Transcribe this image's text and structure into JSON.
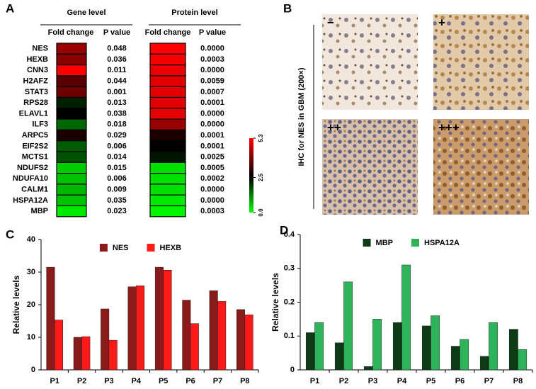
{
  "chart_data": [
    {
      "type": "heatmap",
      "panel": "A",
      "groups": [
        "Gene level",
        "Protein level"
      ],
      "column_labels": [
        "Fold change",
        "P value",
        "Fold change",
        "P value"
      ],
      "rows": [
        "NES",
        "HEXB",
        "CNN3",
        "H2AFZ",
        "STAT3",
        "RPS28",
        "ELAVL1",
        "ILF3",
        "ARPC5",
        "EIF2S2",
        "MCTS1",
        "NDUFS2",
        "NDUFA10",
        "CALM1",
        "HSPA12A",
        "MBP"
      ],
      "row_colors": [
        "#e02020",
        "#e02020",
        "#000000",
        "#000000",
        "#000000",
        "#000000",
        "#000000",
        "#000000",
        "#000000",
        "#000000",
        "#000000",
        "#000000",
        "#000000",
        "#000000",
        "#2a9d55",
        "#2a9d55"
      ],
      "values": [
        [
          4.2,
          4.0,
          5.3,
          3.5,
          3.7,
          2.2,
          2.5,
          1.5,
          2.8,
          1.6,
          1.7,
          0.5,
          0.6,
          0.7,
          0.6,
          0.2
        ],
        [
          5.3,
          5.2,
          5.1,
          5.0,
          5.0,
          5.0,
          5.0,
          4.2,
          2.8,
          2.5,
          2.3,
          0.3,
          0.3,
          0.3,
          0.2,
          0.1
        ]
      ],
      "p_values": [
        [
          "0.048",
          "0.036",
          "0.011",
          "0.044",
          "0.001",
          "0.013",
          "0.038",
          "0.018",
          "0.029",
          "0.006",
          "0.014",
          "0.015",
          "0.006",
          "0.009",
          "0.035",
          "0.023"
        ],
        [
          "0.0000",
          "0.0003",
          "0.0000",
          "0.0059",
          "0.0007",
          "0.0001",
          "0.0000",
          "0.0000",
          "0.0001",
          "0.0001",
          "0.0025",
          "0.0005",
          "0.0002",
          "0.0000",
          "0.0000",
          "0.0003"
        ]
      ],
      "zlim": [
        0,
        5.3
      ],
      "zticks": [
        {
          "value": 0,
          "label": "0.0"
        },
        2.5,
        5.3
      ],
      "colors": [
        "#00ff00",
        "#000000",
        "#ff0000"
      ]
    },
    {
      "type": "bar",
      "panel": "C",
      "ylabel": "Relative levels",
      "categories": [
        "P1",
        "P2",
        "P3",
        "P4",
        "P5",
        "P6",
        "P7",
        "P8"
      ],
      "series": [
        {
          "name": "NES",
          "color": "#8b1a1a",
          "values": [
            31.5,
            10,
            18.7,
            25.5,
            31.5,
            21.4,
            24.3,
            18.5
          ]
        },
        {
          "name": "HEXB",
          "color": "#ff1a1a",
          "values": [
            15.3,
            10.2,
            9.1,
            25.8,
            30.6,
            14.2,
            21,
            16.9
          ]
        }
      ],
      "ylim": [
        0,
        40
      ],
      "yticks": [
        0,
        10,
        20,
        30,
        40
      ],
      "legend": "top"
    },
    {
      "type": "bar",
      "panel": "D",
      "ylabel": "Relative levels",
      "categories": [
        "P1",
        "P2",
        "P3",
        "P4",
        "P5",
        "P6",
        "P7",
        "P8"
      ],
      "series": [
        {
          "name": "MBP",
          "color": "#0d3b16",
          "values": [
            0.11,
            0.08,
            0.01,
            0.14,
            0.13,
            0.07,
            0.04,
            0.12
          ]
        },
        {
          "name": "HSPA12A",
          "color": "#2db35a",
          "values": [
            0.14,
            0.26,
            0.15,
            0.31,
            0.16,
            0.09,
            0.14,
            0.06
          ]
        }
      ],
      "ylim": [
        0,
        0.4
      ],
      "yticks": [
        0,
        0.1,
        0.2,
        0.3,
        0.4
      ],
      "legend": "top"
    }
  ],
  "ihc": {
    "panel": "B",
    "title": "IHC for NES in GBM (200×)",
    "images": [
      "−",
      "+",
      "++",
      "+++"
    ]
  }
}
